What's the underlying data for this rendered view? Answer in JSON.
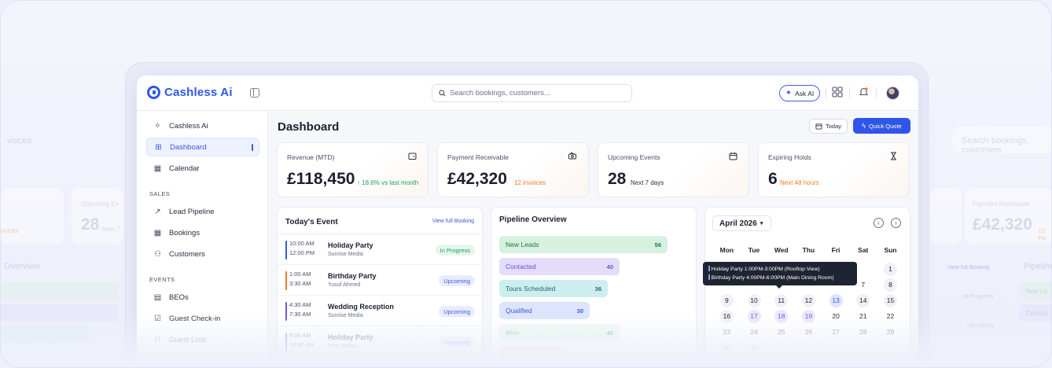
{
  "app": {
    "brand": "Cashless Ai"
  },
  "topbar": {
    "search_placeholder": "Search bookings, customers...",
    "ask_ai_label": "Ask AI"
  },
  "sidebar": {
    "items_top": [
      {
        "label": "Cashless Ai",
        "icon": "sparkle-icon"
      },
      {
        "label": "Dashboard",
        "icon": "grid-icon",
        "active": true
      },
      {
        "label": "Calendar",
        "icon": "calendar-icon"
      }
    ],
    "section_sales": "SALES",
    "items_sales": [
      {
        "label": "Lead Pipeline",
        "icon": "trend-icon"
      },
      {
        "label": "Bookings",
        "icon": "calendar-check-icon"
      },
      {
        "label": "Customers",
        "icon": "users-icon"
      }
    ],
    "section_events": "EVENTS",
    "items_events": [
      {
        "label": "BEOs",
        "icon": "document-icon"
      },
      {
        "label": "Guest Check-in",
        "icon": "check-square-icon"
      },
      {
        "label": "Guest Lists",
        "icon": "users-icon"
      }
    ]
  },
  "header": {
    "title": "Dashboard",
    "today_label": "Today",
    "quick_quote_label": "Quick Quote"
  },
  "stats": [
    {
      "label": "Revenue (MTD)",
      "value": "£118,450",
      "sub": "↑ 18.6% vs last month",
      "sub_color": "#1f9d63",
      "icon": "wallet-icon"
    },
    {
      "label": "Payment Receivable",
      "value": "£42,320",
      "sub": "12 invoices",
      "sub_color": "#ee7a2b",
      "icon": "cash-icon"
    },
    {
      "label": "Upcoming Events",
      "value": "28",
      "sub": "Next 7 days",
      "sub_color": "#2a2e40",
      "icon": "calendar-icon"
    },
    {
      "label": "Expiring Holds",
      "value": "6",
      "sub": "Next 48 hours",
      "sub_color": "#ee7a2b",
      "icon": "hourglass-icon"
    }
  ],
  "todays_event": {
    "title": "Today's Event",
    "link": "View full Booking",
    "rows": [
      {
        "start": "10:00 AM",
        "end": "12:00 PM",
        "name": "Holiday Party",
        "host": "Sunrise Media",
        "status": "In Progress",
        "bar_color": "#3a58e6"
      },
      {
        "start": "1:00 AM",
        "end": "3:30 AM",
        "name": "Birthday Party",
        "host": "Yusuf Ahmed",
        "status": "Upcoming",
        "bar_color": "#ee7a2b"
      },
      {
        "start": "4:30 AM",
        "end": "7:30 AM",
        "name": "Wedding Reception",
        "host": "Sunrise Media",
        "status": "Upcoming",
        "bar_color": "#7355e6"
      },
      {
        "start": "8:00 AM",
        "end": "10:30 AM",
        "name": "Holiday Party",
        "host": "Tech Media",
        "status": "Upcoming",
        "bar_color": "#3a58e6"
      }
    ]
  },
  "pipeline": {
    "title": "Pipeline Overview",
    "stages": [
      {
        "label": "New Leads",
        "count": "56",
        "value": 56,
        "bg": "#d6f1df",
        "fg": "#1f7a45"
      },
      {
        "label": "Contacted",
        "count": "40",
        "value": 40,
        "bg": "#e3dcfb",
        "fg": "#6a4fd8"
      },
      {
        "label": "Tours Scheduled",
        "count": "36",
        "value": 36,
        "bg": "#cdeeee",
        "fg": "#1c6a6a"
      },
      {
        "label": "Qualified",
        "count": "30",
        "value": 30,
        "bg": "#dde5fd",
        "fg": "#3a58e6"
      },
      {
        "label": "Won",
        "count": "40",
        "value": 40,
        "bg": "#ddf3e4",
        "fg": "#1f7a45"
      }
    ]
  },
  "calendar": {
    "month_label": "April 2026",
    "weekdays": [
      "Mon",
      "Tue",
      "Wed",
      "Thu",
      "Fri",
      "Sat",
      "Sun"
    ],
    "rows": [
      [
        "",
        "",
        "",
        "",
        "",
        "",
        "1"
      ],
      [
        "",
        "",
        "",
        "",
        "",
        "",
        "8"
      ],
      [
        "9",
        "10",
        "11",
        "12",
        "13",
        "14",
        "15"
      ],
      [
        "16",
        "17",
        "18",
        "19",
        "20",
        "21",
        "22"
      ],
      [
        "23",
        "24",
        "25",
        "26",
        "27",
        "28",
        "29"
      ],
      [
        "30",
        "31",
        "",
        "",
        "",
        "",
        ""
      ]
    ],
    "visible_7": "7",
    "tooltip": [
      "Holiday Party 1:00PM-3:00PM (Rooftop View)",
      "Birthday Party 4:00PM-6:00PM (Main Dining Room)"
    ]
  },
  "background_echo": {
    "search_placeholder": "Search bookings, customers",
    "left_label_1": "Upcoming Ev",
    "left_value": "28",
    "left_value_sub": "Next 7",
    "left_overview": "Overview",
    "left_text_invoices": "voices",
    "right_label": "Payment Receivable",
    "right_value": "£42,320",
    "right_sub": "12 inv",
    "right_link": "View full Booking",
    "right_pipe": "Pipeline",
    "right_status_1": "In Progress",
    "right_status_2": "Upcoming",
    "right_stage_1": "New Le",
    "right_stage_2": "Contact"
  }
}
